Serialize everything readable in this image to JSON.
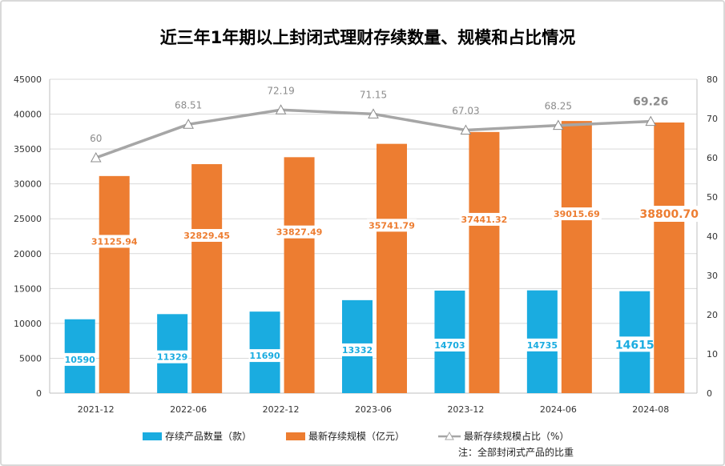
{
  "chart_data": {
    "type": "bar",
    "title": "近三年1年期以上封闭式理财存续数量、规模和占比情况",
    "categories": [
      "2021-12",
      "2022-06",
      "2022-12",
      "2023-06",
      "2023-12",
      "2024-06",
      "2024-08"
    ],
    "series": [
      {
        "name": "存续产品数量（款）",
        "axis": "left",
        "color": "#1aace0",
        "values": [
          10590,
          11329,
          11690,
          13332,
          14703,
          14735,
          14615
        ],
        "labels": [
          "10590",
          "11329",
          "11690",
          "13332",
          "14703",
          "14735",
          "14615"
        ]
      },
      {
        "name": "最新存续规模（亿元）",
        "axis": "left",
        "color": "#ed7d31",
        "values": [
          31125.94,
          32829.45,
          33827.49,
          35741.79,
          37441.32,
          39015.69,
          38800.7
        ],
        "labels": [
          "31125.94",
          "32829.45",
          "33827.49",
          "35741.79",
          "37441.32",
          "39015.69",
          "38800.70"
        ]
      },
      {
        "name": "最新存续规模占比（%）",
        "axis": "right",
        "type": "line",
        "color": "#a6a6a6",
        "values": [
          60,
          68.51,
          72.19,
          71.15,
          67.03,
          68.25,
          69.26
        ],
        "labels": [
          "60",
          "68.51",
          "72.19",
          "71.15",
          "67.03",
          "68.25",
          "69.26"
        ]
      }
    ],
    "y_left": {
      "min": 0,
      "max": 45000,
      "ticks": [
        0,
        5000,
        10000,
        15000,
        20000,
        25000,
        30000,
        35000,
        40000,
        45000
      ]
    },
    "y_right": {
      "min": 0,
      "max": 80,
      "ticks": [
        0,
        10,
        20,
        30,
        40,
        50,
        60,
        70,
        80
      ]
    },
    "grid": true,
    "legend_position": "bottom",
    "note": "注：全部封闭式产品的比重"
  }
}
